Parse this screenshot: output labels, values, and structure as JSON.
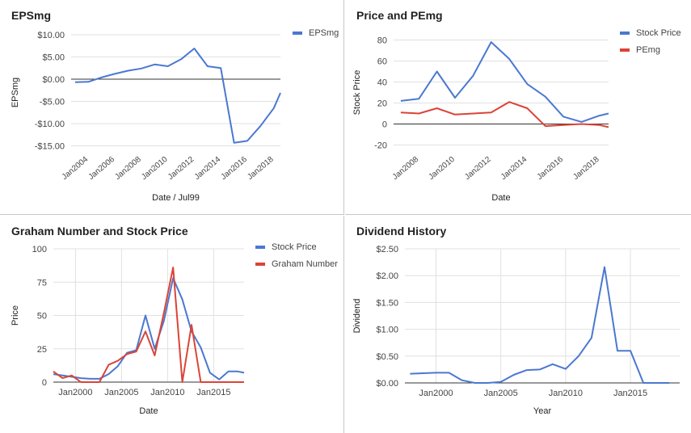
{
  "chart_data": [
    {
      "id": "eps",
      "type": "line",
      "title": "EPSmg",
      "xlabel": "Date / Jul99",
      "ylabel": "EPSmg",
      "x_is_date": true,
      "xlim": [
        2002.7,
        2018.5
      ],
      "ylim": [
        -16,
        10
      ],
      "yticks": [
        10,
        5,
        0,
        -5,
        -10,
        -15
      ],
      "ytick_labels": [
        "$10.00",
        "$5.00",
        "$0.00",
        "-$5.00",
        "-$10.00",
        "-$15.00"
      ],
      "xtick_positions": [
        2004,
        2006,
        2008,
        2010,
        2012,
        2014,
        2016,
        2018
      ],
      "xtick_labels": [
        "Jan2004",
        "Jan2006",
        "Jan2008",
        "Jan2010",
        "Jan2012",
        "Jan2014",
        "Jan2016",
        "Jan2018"
      ],
      "zero_line": true,
      "legend_position": "right",
      "series": [
        {
          "name": "EPSmg",
          "color": "#4a78d1",
          "x": [
            2003.0,
            2004.0,
            2005.0,
            2006.0,
            2007.0,
            2008.0,
            2009.0,
            2010.0,
            2011.0,
            2012.0,
            2013.0,
            2014.0,
            2015.0,
            2016.0,
            2017.0,
            2018.0,
            2018.5
          ],
          "values": [
            -0.7,
            -0.6,
            0.4,
            1.2,
            1.9,
            2.4,
            3.3,
            2.9,
            4.5,
            6.9,
            2.9,
            2.5,
            -14.3,
            -13.9,
            -10.5,
            -6.5,
            -3.1
          ]
        }
      ]
    },
    {
      "id": "pe",
      "type": "line",
      "title": "Price and PEmg",
      "xlabel": "Date",
      "ylabel": "Stock Price",
      "x_is_date": true,
      "xlim": [
        2006.6,
        2018.5
      ],
      "ylim": [
        -25,
        85
      ],
      "yticks": [
        80,
        60,
        40,
        20,
        0,
        -20
      ],
      "ytick_labels": [
        "80",
        "60",
        "40",
        "20",
        "0",
        "-20"
      ],
      "xtick_positions": [
        2008,
        2010,
        2012,
        2014,
        2016,
        2018
      ],
      "xtick_labels": [
        "Jan2008",
        "Jan2010",
        "Jan2012",
        "Jan2014",
        "Jan2016",
        "Jan2018"
      ],
      "zero_line": true,
      "legend_position": "right",
      "series": [
        {
          "name": "Stock Price",
          "color": "#4a78d1",
          "x": [
            2007.0,
            2008.0,
            2009.0,
            2010.0,
            2011.0,
            2012.0,
            2013.0,
            2014.0,
            2015.0,
            2016.0,
            2017.0,
            2018.0,
            2018.5
          ],
          "values": [
            22,
            24,
            50,
            25,
            46,
            78,
            62,
            38,
            26,
            7,
            2,
            8,
            10
          ]
        },
        {
          "name": "PEmg",
          "color": "#db4437",
          "x": [
            2007.0,
            2008.0,
            2009.0,
            2010.0,
            2011.0,
            2012.0,
            2013.0,
            2014.0,
            2015.0,
            2016.0,
            2017.0,
            2018.0,
            2018.5
          ],
          "values": [
            11,
            10,
            15,
            9,
            10,
            11,
            21,
            15,
            -2,
            -1,
            0,
            -1,
            -3
          ]
        }
      ]
    },
    {
      "id": "graham",
      "type": "line",
      "title": "Graham Number and Stock Price",
      "xlabel": "Date",
      "ylabel": "Price",
      "x_is_date": true,
      "xlim": [
        1997.6,
        2018.3
      ],
      "ylim": [
        0,
        100
      ],
      "yticks": [
        100,
        75,
        50,
        25,
        0
      ],
      "ytick_labels": [
        "100",
        "75",
        "50",
        "25",
        "0"
      ],
      "xtick_positions": [
        2000,
        2005,
        2010,
        2015
      ],
      "xtick_labels": [
        "Jan2000",
        "Jan2005",
        "Jan2010",
        "Jan2015"
      ],
      "vertical_grid": true,
      "legend_position": "right",
      "series": [
        {
          "name": "Stock Price",
          "color": "#4a78d1",
          "x": [
            1997.6,
            1998.6,
            1999.6,
            2000.6,
            2001.6,
            2002.6,
            2003.6,
            2004.6,
            2005.6,
            2006.6,
            2007.6,
            2008.6,
            2009.6,
            2010.6,
            2011.6,
            2012.6,
            2013.6,
            2014.6,
            2015.6,
            2016.6,
            2017.6,
            2018.3
          ],
          "values": [
            6,
            5,
            4,
            3,
            2.5,
            2.5,
            6,
            12,
            22,
            24,
            50,
            25,
            46,
            78,
            62,
            38,
            26,
            7,
            2,
            8,
            8,
            7
          ]
        },
        {
          "name": "Graham Number",
          "color": "#db4437",
          "x": [
            1997.6,
            1998.6,
            1999.6,
            2000.6,
            2001.6,
            2002.6,
            2003.6,
            2004.6,
            2005.6,
            2006.6,
            2007.6,
            2008.6,
            2009.6,
            2010.6,
            2011.6,
            2012.6,
            2013.6,
            2014.6,
            2015.6,
            2016.6,
            2017.6,
            2018.3
          ],
          "values": [
            8,
            3,
            5,
            0,
            0,
            0,
            13,
            16,
            21,
            23,
            38,
            20,
            52,
            86,
            0,
            43,
            0,
            0,
            0,
            0,
            0,
            0
          ]
        }
      ]
    },
    {
      "id": "dividend",
      "type": "line",
      "title": "Dividend History",
      "xlabel": "Year",
      "ylabel": "Dividend",
      "x_is_date": true,
      "xlim": [
        1997.6,
        2018.8
      ],
      "ylim": [
        0,
        2.5
      ],
      "yticks": [
        2.5,
        2,
        1.5,
        1,
        0.5,
        0
      ],
      "ytick_labels": [
        "$2.50",
        "$2.00",
        "$1.50",
        "$1.00",
        "$0.50",
        "$0.00"
      ],
      "xtick_positions": [
        2000,
        2005,
        2010,
        2015
      ],
      "xtick_labels": [
        "Jan2000",
        "Jan2005",
        "Jan2010",
        "Jan2015"
      ],
      "vertical_grid": true,
      "series": [
        {
          "name": "",
          "color": "#4a78d1",
          "x": [
            1998,
            1999,
            2000,
            2001,
            2002,
            2003,
            2004,
            2005,
            2006,
            2007,
            2008,
            2009,
            2010,
            2011,
            2012,
            2013,
            2014,
            2015,
            2016,
            2017,
            2018
          ],
          "values": [
            0.17,
            0.18,
            0.19,
            0.19,
            0.05,
            0.0,
            0.0,
            0.02,
            0.15,
            0.24,
            0.25,
            0.35,
            0.26,
            0.5,
            0.84,
            2.16,
            0.6,
            0.6,
            0.0,
            0.0,
            0.0
          ]
        }
      ]
    }
  ]
}
